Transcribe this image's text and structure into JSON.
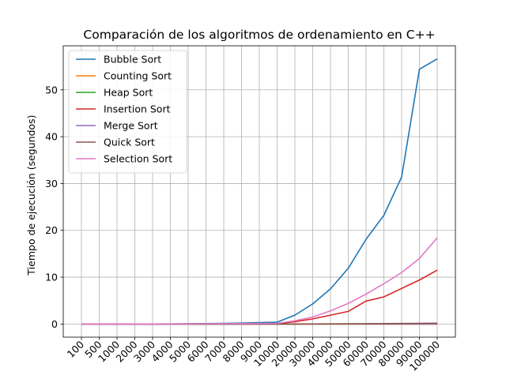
{
  "chart_data": {
    "type": "line",
    "title": "Comparación de los algoritmos de ordenamiento en C++",
    "xlabel": "",
    "ylabel": "Tiempo de ejecución (segundos)",
    "categories": [
      "100",
      "500",
      "1000",
      "2000",
      "3000",
      "4000",
      "5000",
      "6000",
      "7000",
      "8000",
      "9000",
      "10000",
      "20000",
      "30000",
      "40000",
      "50000",
      "60000",
      "70000",
      "80000",
      "90000",
      "100000"
    ],
    "yticks": [
      "0",
      "10",
      "20",
      "30",
      "40",
      "50"
    ],
    "ylim": [
      -2.8,
      59.4
    ],
    "grid": true,
    "legend_position": "top-left",
    "series": [
      {
        "name": "Bubble Sort",
        "color": "#1f77b4",
        "values": [
          0,
          0,
          0,
          0.01,
          0.02,
          0.04,
          0.07,
          0.1,
          0.15,
          0.2,
          0.3,
          0.4,
          1.9,
          4.3,
          7.5,
          11.9,
          18.1,
          23.2,
          31.4,
          54.4,
          56.6
        ]
      },
      {
        "name": "Counting Sort",
        "color": "#ff7f0e",
        "values": [
          0,
          0,
          0,
          0,
          0,
          0,
          0,
          0,
          0,
          0,
          0,
          0,
          0,
          0,
          0,
          0,
          0,
          0,
          0,
          0,
          0
        ]
      },
      {
        "name": "Heap Sort",
        "color": "#2ca02c",
        "values": [
          0,
          0,
          0,
          0,
          0,
          0,
          0,
          0,
          0,
          0,
          0,
          0,
          0,
          0.01,
          0.01,
          0.01,
          0.01,
          0.02,
          0.02,
          0.02,
          0.02
        ]
      },
      {
        "name": "Insertion Sort",
        "color": "#d62728",
        "values": [
          0,
          0,
          0,
          0,
          0,
          0,
          0.01,
          0.02,
          0.03,
          0.04,
          0.05,
          0.07,
          0.5,
          1.1,
          1.9,
          2.7,
          4.9,
          5.8,
          7.6,
          9.4,
          11.5
        ]
      },
      {
        "name": "Merge Sort",
        "color": "#9467bd",
        "values": [
          0,
          0,
          0,
          0,
          0,
          0,
          0,
          0,
          0,
          0,
          0,
          0,
          0,
          0.01,
          0.01,
          0.01,
          0.01,
          0.01,
          0.02,
          0.02,
          0.02
        ]
      },
      {
        "name": "Quick Sort",
        "color": "#8c564b",
        "values": [
          0,
          0,
          0,
          0,
          0,
          0,
          0,
          0,
          0,
          0,
          0,
          0.01,
          0.01,
          0.02,
          0.03,
          0.05,
          0.07,
          0.1,
          0.12,
          0.15,
          0.18
        ]
      },
      {
        "name": "Selection Sort",
        "color": "#e377c2",
        "values": [
          0,
          0,
          0,
          0.01,
          0.01,
          0.02,
          0.03,
          0.05,
          0.07,
          0.09,
          0.12,
          0.15,
          0.7,
          1.5,
          2.8,
          4.4,
          6.4,
          8.6,
          11.0,
          14.0,
          18.4
        ]
      }
    ]
  }
}
